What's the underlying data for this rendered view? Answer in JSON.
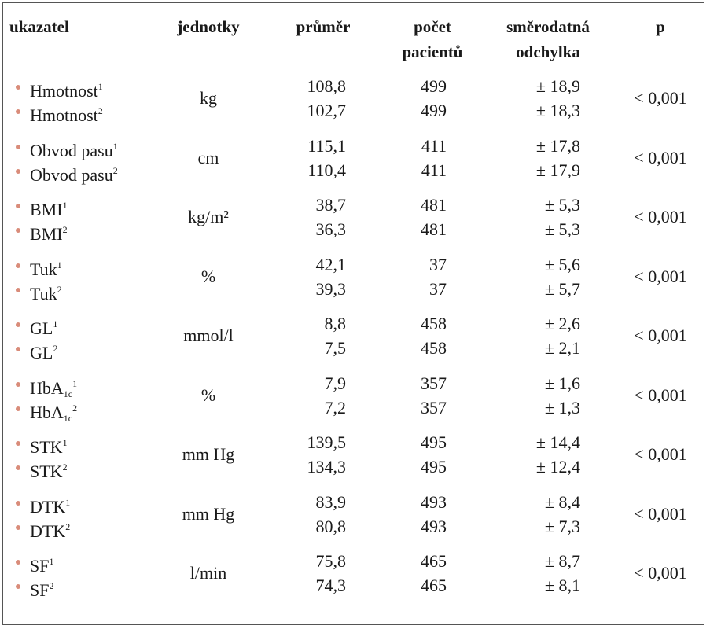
{
  "table": {
    "header": [
      [
        "ukazatel"
      ],
      [
        "jednotky"
      ],
      [
        "průměr"
      ],
      [
        "počet",
        "pacientů"
      ],
      [
        "směrodatná",
        "odchylka"
      ],
      [
        "p"
      ]
    ],
    "groups": [
      {
        "unit": "kg",
        "p": "< 0,001",
        "rows": [
          {
            "name": "Hmotnost",
            "sup": "1",
            "mean": "108,8",
            "n": "499",
            "sd": "± 18,9"
          },
          {
            "name": "Hmotnost",
            "sup": "2",
            "mean": "102,7",
            "n": "499",
            "sd": "± 18,3"
          }
        ]
      },
      {
        "unit": "cm",
        "p": "< 0,001",
        "rows": [
          {
            "name": "Obvod pasu",
            "sup": "1",
            "mean": "115,1",
            "n": "411",
            "sd": "± 17,8"
          },
          {
            "name": "Obvod pasu",
            "sup": "2",
            "mean": "110,4",
            "n": "411",
            "sd": "± 17,9"
          }
        ]
      },
      {
        "unit": "kg/m²",
        "p": "< 0,001",
        "rows": [
          {
            "name": "BMI",
            "sup": "1",
            "mean": "38,7",
            "n": "481",
            "sd": "± 5,3"
          },
          {
            "name": "BMI",
            "sup": "2",
            "mean": "36,3",
            "n": "481",
            "sd": "± 5,3"
          }
        ]
      },
      {
        "unit": "%",
        "p": "< 0,001",
        "rows": [
          {
            "name": "Tuk",
            "sup": "1",
            "mean": "42,1",
            "n": "37",
            "sd": "± 5,6"
          },
          {
            "name": "Tuk",
            "sup": "2",
            "mean": "39,3",
            "n": "37",
            "sd": "± 5,7"
          }
        ]
      },
      {
        "unit": "mmol/l",
        "p": "< 0,001",
        "rows": [
          {
            "name": "GL",
            "sup": "1",
            "mean": "8,8",
            "n": "458",
            "sd": "± 2,6"
          },
          {
            "name": "GL",
            "sup": "2",
            "mean": "7,5",
            "n": "458",
            "sd": "± 2,1"
          }
        ]
      },
      {
        "unit": "%",
        "p": "< 0,001",
        "rows": [
          {
            "name": "HbA",
            "sub": "1c",
            "sup": "1",
            "mean": "7,9",
            "n": "357",
            "sd": "± 1,6"
          },
          {
            "name": "HbA",
            "sub": "1c",
            "sup": "2",
            "mean": "7,2",
            "n": "357",
            "sd": "± 1,3"
          }
        ]
      },
      {
        "unit": "mm Hg",
        "p": "< 0,001",
        "rows": [
          {
            "name": "STK",
            "sup": "1",
            "mean": "139,5",
            "n": "495",
            "sd": "± 14,4"
          },
          {
            "name": "STK",
            "sup": "2",
            "mean": "134,3",
            "n": "495",
            "sd": "± 12,4"
          }
        ]
      },
      {
        "unit": "mm Hg",
        "p": "< 0,001",
        "rows": [
          {
            "name": "DTK",
            "sup": "1",
            "mean": "83,9",
            "n": "493",
            "sd": "± 8,4"
          },
          {
            "name": "DTK",
            "sup": "2",
            "mean": "80,8",
            "n": "493",
            "sd": "± 7,3"
          }
        ]
      },
      {
        "unit": "l/min",
        "p": "< 0,001",
        "rows": [
          {
            "name": "SF",
            "sup": "1",
            "mean": "75,8",
            "n": "465",
            "sd": "± 8,7"
          },
          {
            "name": "SF",
            "sup": "2",
            "mean": "74,3",
            "n": "465",
            "sd": "± 8,1"
          }
        ]
      }
    ]
  }
}
